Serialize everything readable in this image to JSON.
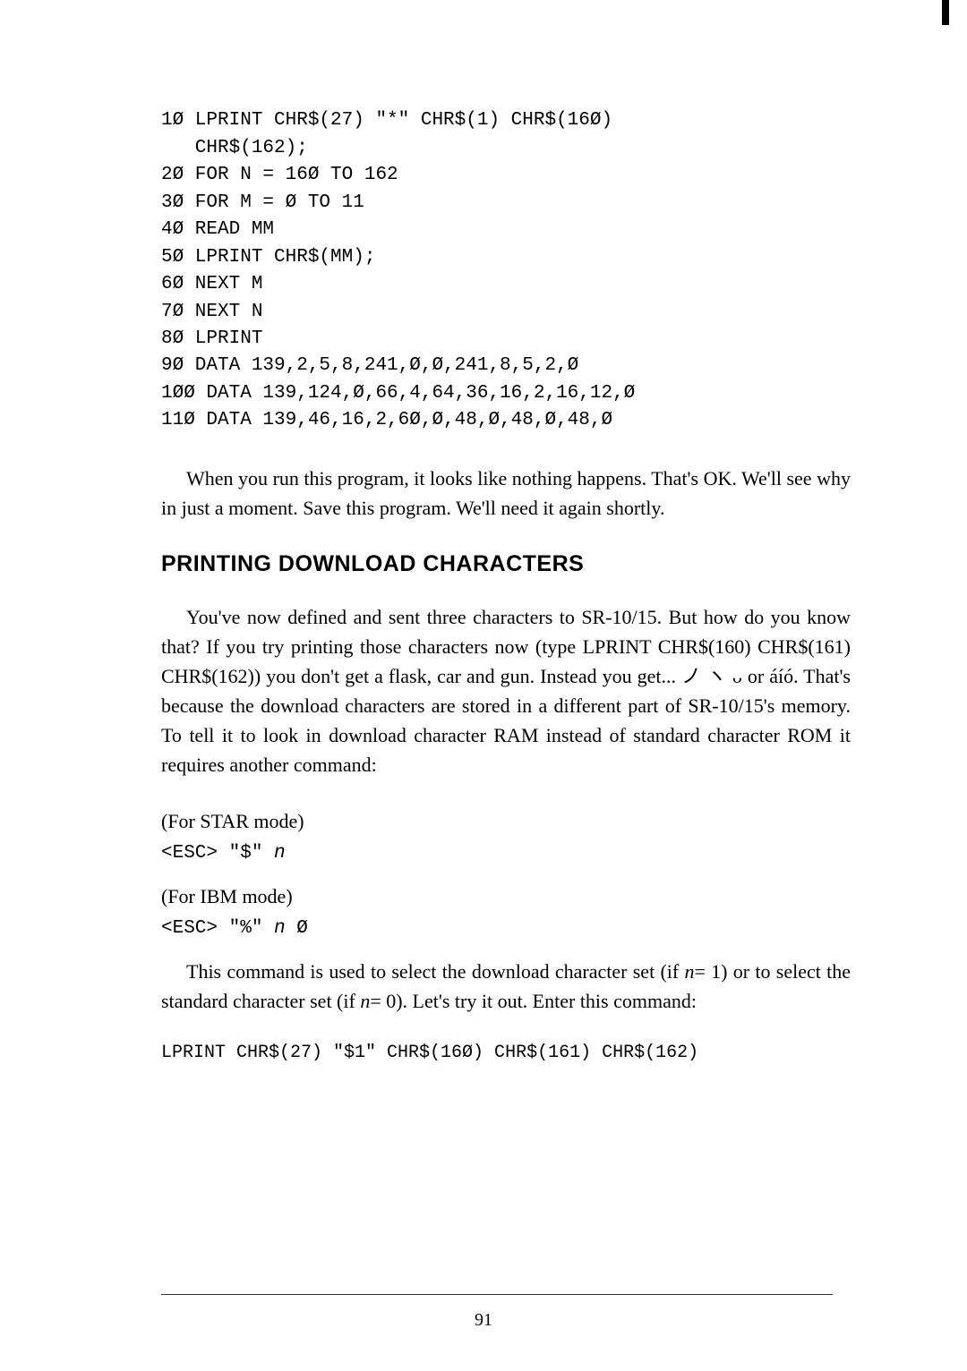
{
  "code": {
    "line1": "1Ø LPRINT CHR$(27) \"*\" CHR$(1) CHR$(16Ø)",
    "line1b": "   CHR$(162);",
    "line2": "2Ø FOR N = 16Ø TO 162",
    "line3": "3Ø FOR M = Ø TO 11",
    "line4": "4Ø READ MM",
    "line5": "5Ø LPRINT CHR$(MM);",
    "line6": "6Ø NEXT M",
    "line7": "7Ø NEXT N",
    "line8": "8Ø LPRINT",
    "line9": "9Ø DATA 139,2,5,8,241,Ø,Ø,241,8,5,2,Ø",
    "line10": "1ØØ DATA 139,124,Ø,66,4,64,36,16,2,16,12,Ø",
    "line11": "11Ø DATA 139,46,16,2,6Ø,Ø,48,Ø,48,Ø,48,Ø"
  },
  "para1": "When you run this program, it looks like nothing happens. That's OK. We'll see why in just a moment. Save this program. We'll need it again shortly.",
  "heading": "PRINTING DOWNLOAD CHARACTERS",
  "para2": "You've now defined and sent three characters to SR-10/15. But how do you know that? If you try printing those characters now (type LPRINT CHR$(160) CHR$(161) CHR$(162)) you don't get a flask, car and gun. Instead you get... ノ ヽ ᴗ or áíó. That's because the download characters are stored in a different part of SR-10/15's memory. To tell it to look in download character RAM instead of standard character ROM it requires another command:",
  "star_label": "(For STAR mode)",
  "star_code_pre": "<ESC> \"$\" ",
  "star_code_n": "n",
  "ibm_label": "(For IBM mode)",
  "ibm_code_pre": "<ESC> \"%\" ",
  "ibm_code_n": "n",
  "ibm_code_post": " Ø",
  "para3_pre": "This command is used to select the download character set (if ",
  "para3_n1": "n",
  "para3_mid": "= 1) or to select the standard character set (if ",
  "para3_n2": "n",
  "para3_post": "= 0).  Let's try it out. Enter this command:",
  "final_code": "LPRINT CHR$(27) \"$1\" CHR$(16Ø) CHR$(161) CHR$(162)",
  "page_number": "91"
}
